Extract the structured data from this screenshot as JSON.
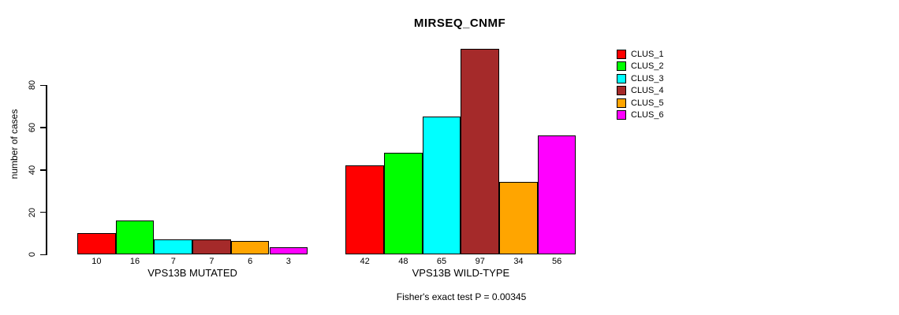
{
  "chart_data": {
    "type": "bar",
    "title": "MIRSEQ_CNMF",
    "ylabel": "number of cases",
    "xlabel": "",
    "ylim": [
      0,
      80
    ],
    "yticks": [
      0,
      20,
      40,
      60,
      80
    ],
    "grid": false,
    "legend_position": "right",
    "categories": [
      "VPS13B MUTATED",
      "VPS13B WILD-TYPE"
    ],
    "series": [
      {
        "name": "CLUS_1",
        "color": "#FF0000",
        "values": [
          10,
          42
        ]
      },
      {
        "name": "CLUS_2",
        "color": "#00FF00",
        "values": [
          16,
          48
        ]
      },
      {
        "name": "CLUS_3",
        "color": "#00FFFF",
        "values": [
          7,
          65
        ]
      },
      {
        "name": "CLUS_4",
        "color": "#A52A2A",
        "values": [
          7,
          97
        ]
      },
      {
        "name": "CLUS_5",
        "color": "#FFA500",
        "values": [
          6,
          34
        ]
      },
      {
        "name": "CLUS_6",
        "color": "#FF00FF",
        "values": [
          3,
          56
        ]
      }
    ],
    "bar_value_labels_shown": true,
    "annotation": "Fisher's exact test P = 0.00345",
    "text_color": "#000000",
    "background_color": "#FFFFFF"
  }
}
